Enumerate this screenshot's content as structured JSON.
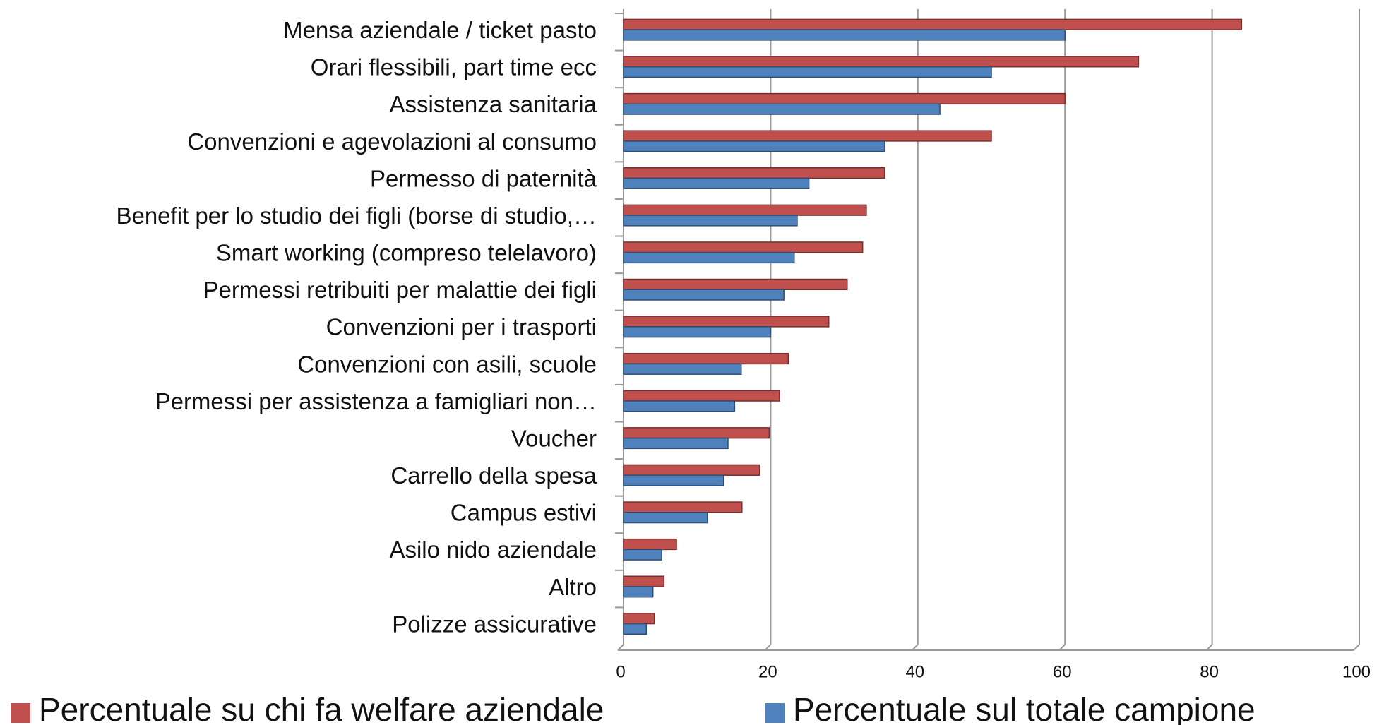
{
  "chart_data": {
    "type": "bar",
    "orientation": "horizontal",
    "categories": [
      "Mensa aziendale / ticket pasto",
      "Orari flessibili, part time ecc",
      "Assistenza sanitaria",
      "Convenzioni e agevolazioni al consumo",
      "Permesso di paternità",
      "Benefit per lo studio dei figli (borse di studio,…",
      "Smart working (compreso telelavoro)",
      "Permessi retribuiti per malattie dei figli",
      "Convenzioni per i trasporti",
      "Convenzioni con asili, scuole",
      "Permessi per assistenza a famigliari non…",
      "Voucher",
      "Carrello della spesa",
      "Campus estivi",
      "Asilo nido aziendale",
      "Altro",
      "Polizze assicurative"
    ],
    "series": [
      {
        "name": "Percentuale su chi fa welfare aziendale",
        "color": "#c0504d",
        "values": [
          84,
          70,
          60,
          50,
          35.5,
          33,
          32.5,
          30.4,
          27.9,
          22.4,
          21.2,
          19.8,
          18.5,
          16.1,
          7.2,
          5.5,
          4.2
        ]
      },
      {
        "name": "Percentuale sul totale campione",
        "color": "#4f81bd",
        "values": [
          60,
          50,
          43,
          35.5,
          25.2,
          23.6,
          23.2,
          21.8,
          20,
          16,
          15.1,
          14.2,
          13.6,
          11.4,
          5.2,
          4,
          3.1
        ]
      }
    ],
    "xlim": [
      0,
      100
    ],
    "xticks": [
      0,
      20,
      40,
      60,
      80,
      100
    ],
    "grid": true,
    "legend": "bottom"
  }
}
